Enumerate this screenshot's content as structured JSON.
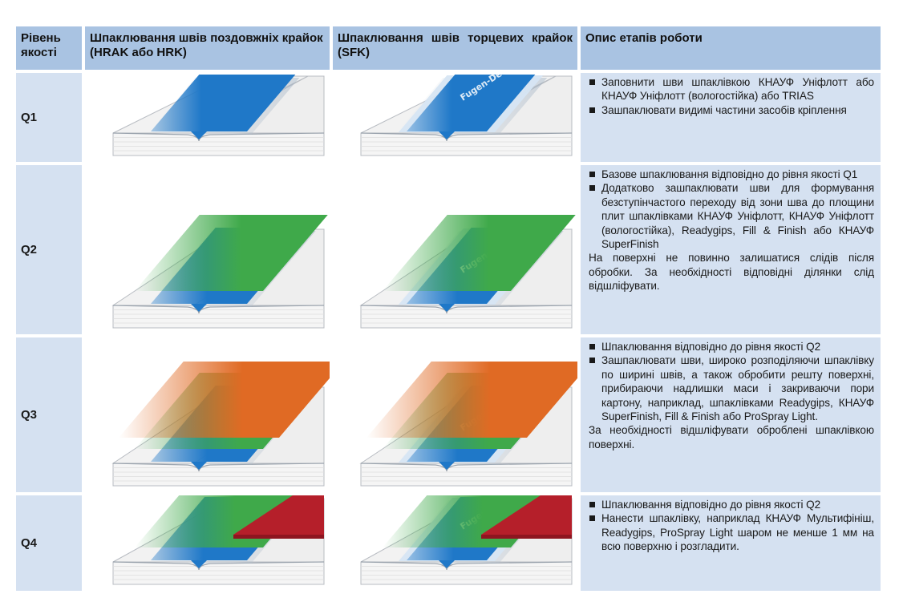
{
  "header": {
    "level": "Рівень якості",
    "long_edges": "Шпаклювання швів поздовжніх крайок (HRAK або HRK)",
    "end_edges": "Шпаклювання швів торцевих крайок (SFK)",
    "description": "Опис етапів роботи"
  },
  "rows": [
    {
      "level": "Q1",
      "layers": [
        "blue"
      ],
      "bullets": [
        "Заповнити шви шпаклівкою КНАУФ Уніфлотт або КНАУФ Уніфлотт (вологостійка) або TRIAS",
        "Зашпаклювати видимі частини засобів кріплення"
      ],
      "note": ""
    },
    {
      "level": "Q2",
      "layers": [
        "blue",
        "green"
      ],
      "bullets": [
        "Базове шпаклювання відповідно до рівня якості Q1",
        "Додатково зашпаклювати шви для формування безступінчастого переходу від зони шва до площини плит шпаклівками КНАУФ Уніфлотт, КНАУФ Уніфлотт (вологостійка), Readygips, Fill & Finish або КНАУФ SuperFinish"
      ],
      "note": "На поверхні не повинно залишатися слідів після обробки. За необхідності відповідні ділянки слід відшліфувати."
    },
    {
      "level": "Q3",
      "layers": [
        "blue",
        "green",
        "orange"
      ],
      "bullets": [
        "Шпаклювання відповідно до рівня якості Q2",
        "Зашпаклювати шви, широко розподіляючи шпаклівку по ширині швів, а також обробити решту поверхні, прибираючи надлишки маси і закриваючи пори картону, наприклад, шпаклівками Readygips, КНАУФ SuperFinish, Fill & Finish або ProSpray Light."
      ],
      "note": "За необхідності відшліфувати оброблені шпаклівкою поверхні."
    },
    {
      "level": "Q4",
      "layers": [
        "blue",
        "green",
        "red"
      ],
      "bullets": [
        "Шпаклювання відповідно до рівня якості Q2",
        "Нанести шпаклівку, наприклад КНАУФ Мультифініш, Readygips, ProSpray Light шаром не менше 1 мм на всю поверхню і розгладити."
      ],
      "note": ""
    }
  ],
  "tape_text": "Fugen-Deckstreifen",
  "colors": {
    "header_bg": "#a9c3e2",
    "cell_bg": "#d5e1f1",
    "blue": "#1f78c8",
    "green": "#3fa94a",
    "orange": "#e06a24",
    "red": "#b51f2a"
  }
}
